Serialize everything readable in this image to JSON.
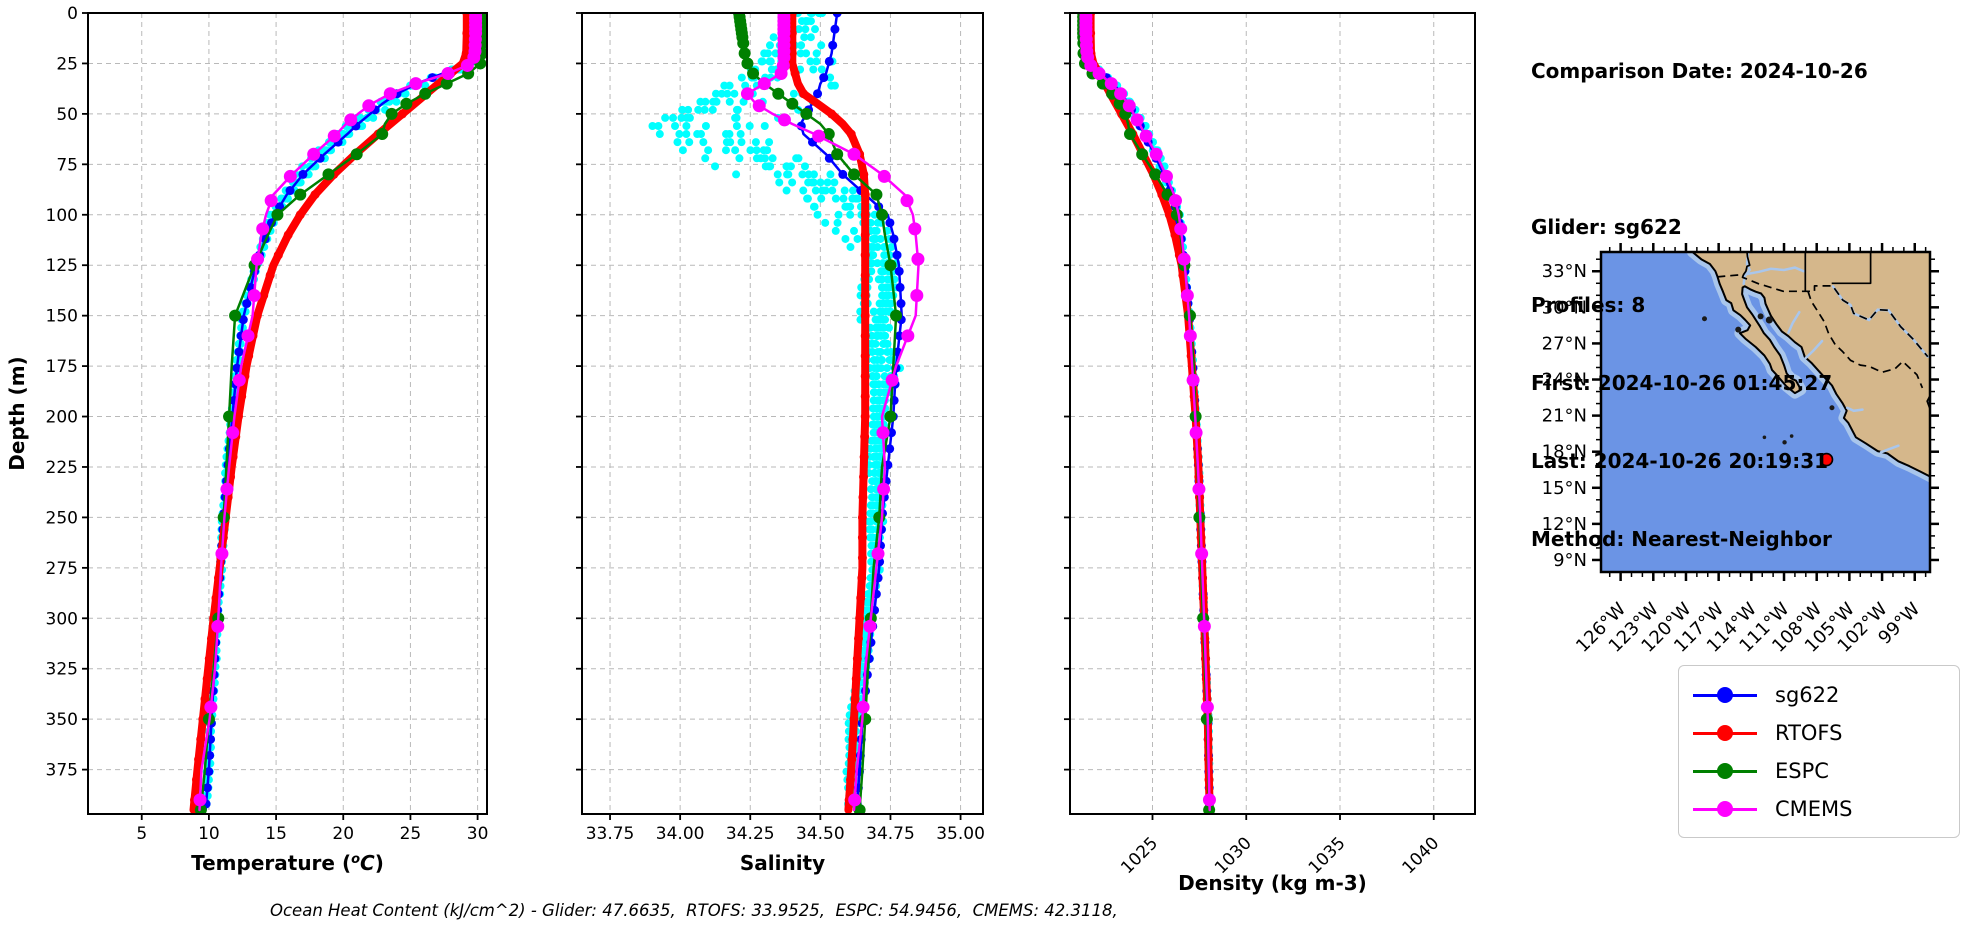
{
  "info_panel": {
    "comparison_date": "Comparison Date: 2024-10-26",
    "glider": "Glider: sg622",
    "profiles": "Profiles: 8",
    "first": "First: 2024-10-26 01:45:27",
    "last": "Last: 2024-10-26 20:19:31",
    "method": "Method: Nearest-Neighbor"
  },
  "caption": "Ocean Heat Content (kJ/cm^2) - Glider: 47.6635,  RTOFS: 33.9525,  ESPC: 54.9456,  CMEMS: 42.3118,",
  "legend": {
    "items": [
      {
        "label": "sg622",
        "color": "#0000FF"
      },
      {
        "label": "RTOFS",
        "color": "#FF0000"
      },
      {
        "label": "ESPC",
        "color": "#008000"
      },
      {
        "label": "CMEMS",
        "color": "#FF00FF"
      }
    ]
  },
  "map": {
    "lat_tick_labels": [
      "33°N",
      "30°N",
      "27°N",
      "24°N",
      "21°N",
      "18°N",
      "15°N",
      "12°N",
      "9°N"
    ],
    "lat_tick_values": [
      33,
      30,
      27,
      24,
      21,
      18,
      15,
      12,
      9
    ],
    "lon_tick_labels": [
      "126°W",
      "123°W",
      "120°W",
      "117°W",
      "114°W",
      "111°W",
      "108°W",
      "105°W",
      "102°W",
      "99°W"
    ],
    "lon_tick_values": [
      -126,
      -123,
      -120,
      -117,
      -114,
      -111,
      -108,
      -105,
      -102,
      -99
    ],
    "extent": {
      "lon_min": -127.8,
      "lon_max": -97.6,
      "lat_min": 8.0,
      "lat_max": 34.6
    },
    "marker": {
      "lon": -107.1,
      "lat": 17.35,
      "color": "#FF0000",
      "edge_color": "#000000"
    },
    "colors": {
      "land": "#D5B78B",
      "ocean": "#6B94E5",
      "shallow": "#A9C6EC",
      "coast": "#000000"
    }
  },
  "chart_data": {
    "type": "line",
    "ylabel": "Depth (m)",
    "ylim": [
      0,
      397
    ],
    "y_ticks": [
      0,
      25,
      50,
      75,
      100,
      125,
      150,
      175,
      200,
      225,
      250,
      275,
      300,
      325,
      350,
      375
    ],
    "grid": true,
    "depths": [
      0,
      10,
      20,
      25,
      30,
      35,
      40,
      45,
      50,
      55,
      60,
      70,
      80,
      90,
      100,
      110,
      125,
      150,
      175,
      200,
      225,
      250,
      275,
      300,
      325,
      350,
      375,
      395
    ],
    "panels": [
      {
        "id": "temperature",
        "xlabel": "Temperature (°C)",
        "xlim": [
          1.0,
          30.7
        ],
        "xtick_labels": [
          "5",
          "10",
          "15",
          "20",
          "25",
          "30"
        ],
        "xtick_values": [
          5,
          10,
          15,
          20,
          25,
          30
        ],
        "tick_rotation": 0,
        "value_key": "temperature"
      },
      {
        "id": "salinity",
        "xlabel": "Salinity",
        "xlim": [
          33.65,
          35.08
        ],
        "xtick_labels": [
          "33.75",
          "34.00",
          "34.25",
          "34.50",
          "34.75",
          "35.00"
        ],
        "xtick_values": [
          33.75,
          34.0,
          34.25,
          34.5,
          34.75,
          35.0
        ],
        "tick_rotation": 0,
        "value_key": "salinity"
      },
      {
        "id": "density",
        "xlabel": "Density (kg m-3)",
        "xlim": [
          1020.6,
          1042.2
        ],
        "xtick_labels": [
          "1025",
          "1030",
          "1035",
          "1040"
        ],
        "xtick_values": [
          1025,
          1030,
          1035,
          1040
        ],
        "tick_rotation": 45,
        "value_key": "density"
      }
    ],
    "series": [
      {
        "name": "sg622",
        "color": "#0000FF",
        "temperature": [
          29.9,
          29.9,
          29.8,
          29.4,
          27.4,
          25.5,
          24.0,
          22.9,
          22.0,
          21.1,
          20.3,
          18.6,
          17.0,
          15.8,
          14.9,
          14.3,
          13.5,
          12.6,
          12.1,
          11.75,
          11.4,
          11.1,
          10.85,
          10.6,
          10.4,
          10.2,
          10.0,
          9.75
        ],
        "salinity": [
          34.56,
          34.55,
          34.54,
          34.53,
          34.52,
          34.5,
          34.49,
          34.47,
          34.45,
          34.43,
          34.44,
          34.52,
          34.58,
          34.66,
          34.74,
          34.76,
          34.78,
          34.79,
          34.77,
          34.76,
          34.74,
          34.72,
          34.71,
          34.69,
          34.67,
          34.65,
          34.64,
          34.63
        ],
        "density": [
          1021.5,
          1021.5,
          1021.55,
          1021.7,
          1022.3,
          1022.9,
          1023.35,
          1023.7,
          1024.0,
          1024.3,
          1024.55,
          1025.1,
          1025.6,
          1026.0,
          1026.35,
          1026.5,
          1026.7,
          1026.95,
          1027.15,
          1027.3,
          1027.45,
          1027.55,
          1027.65,
          1027.75,
          1027.85,
          1027.95,
          1028.0,
          1028.05
        ]
      },
      {
        "name": "RTOFS",
        "color": "#FF0000",
        "temperature": [
          29.2,
          29.2,
          29.15,
          28.9,
          28.0,
          27.1,
          26.2,
          25.3,
          24.4,
          23.5,
          22.6,
          20.9,
          19.3,
          17.9,
          16.8,
          15.9,
          14.8,
          13.6,
          12.8,
          12.2,
          11.7,
          11.25,
          10.8,
          10.35,
          9.95,
          9.55,
          9.15,
          8.85
        ],
        "salinity": [
          34.4,
          34.4,
          34.4,
          34.4,
          34.41,
          34.42,
          34.44,
          34.49,
          34.54,
          34.58,
          34.61,
          34.64,
          34.655,
          34.66,
          34.66,
          34.66,
          34.66,
          34.66,
          34.66,
          34.66,
          34.655,
          34.65,
          34.65,
          34.64,
          34.63,
          34.62,
          34.61,
          34.6
        ],
        "density": [
          1021.7,
          1021.7,
          1021.72,
          1021.85,
          1022.15,
          1022.45,
          1022.75,
          1023.05,
          1023.35,
          1023.65,
          1023.95,
          1024.5,
          1025.05,
          1025.5,
          1025.9,
          1026.2,
          1026.55,
          1026.9,
          1027.1,
          1027.3,
          1027.45,
          1027.55,
          1027.65,
          1027.75,
          1027.85,
          1027.95,
          1028.0,
          1028.05
        ]
      },
      {
        "name": "ESPC",
        "color": "#008000",
        "temperature": [
          30.4,
          30.4,
          30.35,
          30.2,
          29.3,
          27.7,
          26.1,
          24.7,
          23.6,
          23.1,
          22.9,
          21.0,
          18.9,
          16.8,
          15.1,
          14.4,
          13.4,
          11.95,
          11.7,
          11.5,
          11.3,
          11.1,
          10.9,
          10.7,
          10.35,
          10.0,
          9.7,
          9.4
        ],
        "salinity": [
          34.21,
          34.22,
          34.23,
          34.24,
          34.26,
          34.3,
          34.35,
          34.4,
          34.45,
          34.5,
          34.53,
          34.56,
          34.62,
          34.7,
          34.72,
          34.73,
          34.75,
          34.77,
          34.76,
          34.75,
          34.72,
          34.71,
          34.69,
          34.68,
          34.67,
          34.66,
          34.65,
          34.64
        ],
        "density": [
          1021.3,
          1021.3,
          1021.32,
          1021.4,
          1021.8,
          1022.35,
          1022.85,
          1023.25,
          1023.55,
          1023.7,
          1023.8,
          1024.45,
          1025.15,
          1025.8,
          1026.3,
          1026.5,
          1026.7,
          1027.0,
          1027.2,
          1027.3,
          1027.4,
          1027.5,
          1027.6,
          1027.7,
          1027.8,
          1027.9,
          1027.97,
          1028.02
        ]
      },
      {
        "name": "CMEMS",
        "color": "#FF00FF",
        "temperature": [
          29.85,
          29.85,
          29.8,
          29.6,
          27.8,
          25.4,
          23.5,
          22.1,
          21.1,
          20.2,
          19.5,
          17.8,
          16.2,
          14.8,
          14.25,
          13.9,
          13.55,
          13.25,
          12.4,
          11.9,
          11.5,
          11.15,
          10.9,
          10.7,
          10.45,
          10.05,
          9.45,
          9.3
        ],
        "salinity": [
          34.37,
          34.37,
          34.37,
          34.37,
          34.36,
          34.3,
          34.24,
          34.27,
          34.33,
          34.4,
          34.48,
          34.62,
          34.72,
          34.8,
          34.83,
          34.84,
          34.85,
          34.84,
          34.77,
          34.72,
          34.73,
          34.72,
          34.7,
          34.68,
          34.66,
          34.65,
          34.63,
          34.62
        ],
        "density": [
          1021.45,
          1021.45,
          1021.5,
          1021.6,
          1022.15,
          1022.8,
          1023.3,
          1023.7,
          1024.0,
          1024.3,
          1024.6,
          1025.2,
          1025.7,
          1026.15,
          1026.4,
          1026.55,
          1026.72,
          1026.95,
          1027.12,
          1027.28,
          1027.42,
          1027.55,
          1027.65,
          1027.75,
          1027.85,
          1027.95,
          1028.0,
          1028.05
        ]
      }
    ],
    "raw_glider": {
      "name": "glider raw points",
      "color": "#00FFFF",
      "profile_count": 8
    }
  }
}
